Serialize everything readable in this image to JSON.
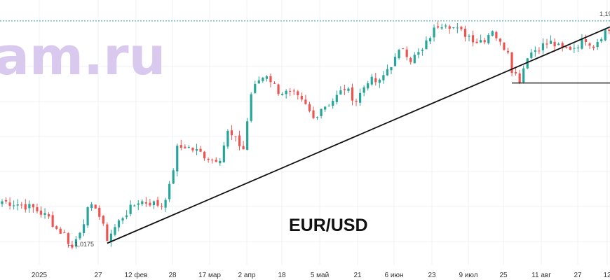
{
  "watermark": "am.ru",
  "pair_label": "EUR/USD",
  "low_annotation": "← 1,0175",
  "top_price_label": "1,19",
  "colors": {
    "up": "#26a69a",
    "down": "#ef5350",
    "grid": "#eef0f3",
    "watermark": "#d9c9ef",
    "trendline": "#111111",
    "level_line": "#26a69a"
  },
  "chart_data": {
    "type": "candlestick",
    "title": "EUR/USD",
    "x_tick_labels": [
      "2025",
      "27",
      "12 фев",
      "28",
      "17 мар",
      "2 апр",
      "18",
      "5 май",
      "21",
      "6 июн",
      "23",
      "9 июл",
      "25",
      "11 авг",
      "27",
      "12"
    ],
    "ylim": [
      1.005,
      1.198
    ],
    "annotations": [
      {
        "text": "← 1,0175",
        "value": 1.0175
      },
      {
        "text": "1,19",
        "value": 1.193
      }
    ],
    "resistance_level": 1.1828,
    "support_trendline": [
      {
        "x": 27,
        "y": 1.0215
      },
      {
        "x": 155,
        "y": 1.177
      }
    ],
    "horizontal_level_after_low": 1.1378,
    "anchor_points": [
      [
        0,
        1.052
      ],
      [
        4,
        1.05
      ],
      [
        8,
        1.047
      ],
      [
        12,
        1.04
      ],
      [
        14,
        1.032
      ],
      [
        16,
        1.028
      ],
      [
        18,
        1.018
      ],
      [
        20,
        1.031
      ],
      [
        22,
        1.045
      ],
      [
        24,
        1.049
      ],
      [
        27,
        1.025
      ],
      [
        31,
        1.041
      ],
      [
        35,
        1.052
      ],
      [
        38,
        1.051
      ],
      [
        41,
        1.049
      ],
      [
        43,
        1.062
      ],
      [
        45,
        1.09
      ],
      [
        47,
        1.092
      ],
      [
        51,
        1.087
      ],
      [
        54,
        1.082
      ],
      [
        56,
        1.084
      ],
      [
        58,
        1.102
      ],
      [
        60,
        1.096
      ],
      [
        62,
        1.09
      ],
      [
        64,
        1.13
      ],
      [
        66,
        1.14
      ],
      [
        68,
        1.144
      ],
      [
        71,
        1.132
      ],
      [
        75,
        1.129
      ],
      [
        78,
        1.121
      ],
      [
        80,
        1.112
      ],
      [
        82,
        1.12
      ],
      [
        84,
        1.123
      ],
      [
        86,
        1.128
      ],
      [
        88,
        1.134
      ],
      [
        91,
        1.125
      ],
      [
        94,
        1.14
      ],
      [
        97,
        1.138
      ],
      [
        99,
        1.148
      ],
      [
        101,
        1.155
      ],
      [
        103,
        1.164
      ],
      [
        105,
        1.155
      ],
      [
        108,
        1.161
      ],
      [
        110,
        1.172
      ],
      [
        112,
        1.18
      ],
      [
        114,
        1.182
      ],
      [
        117,
        1.176
      ],
      [
        120,
        1.172
      ],
      [
        122,
        1.168
      ],
      [
        124,
        1.17
      ],
      [
        126,
        1.177
      ],
      [
        128,
        1.166
      ],
      [
        130,
        1.162
      ],
      [
        131,
        1.148
      ],
      [
        133,
        1.14
      ],
      [
        135,
        1.158
      ],
      [
        138,
        1.164
      ],
      [
        141,
        1.167
      ],
      [
        144,
        1.162
      ],
      [
        147,
        1.164
      ],
      [
        150,
        1.17
      ],
      [
        152,
        1.165
      ],
      [
        155,
        1.176
      ]
    ]
  }
}
